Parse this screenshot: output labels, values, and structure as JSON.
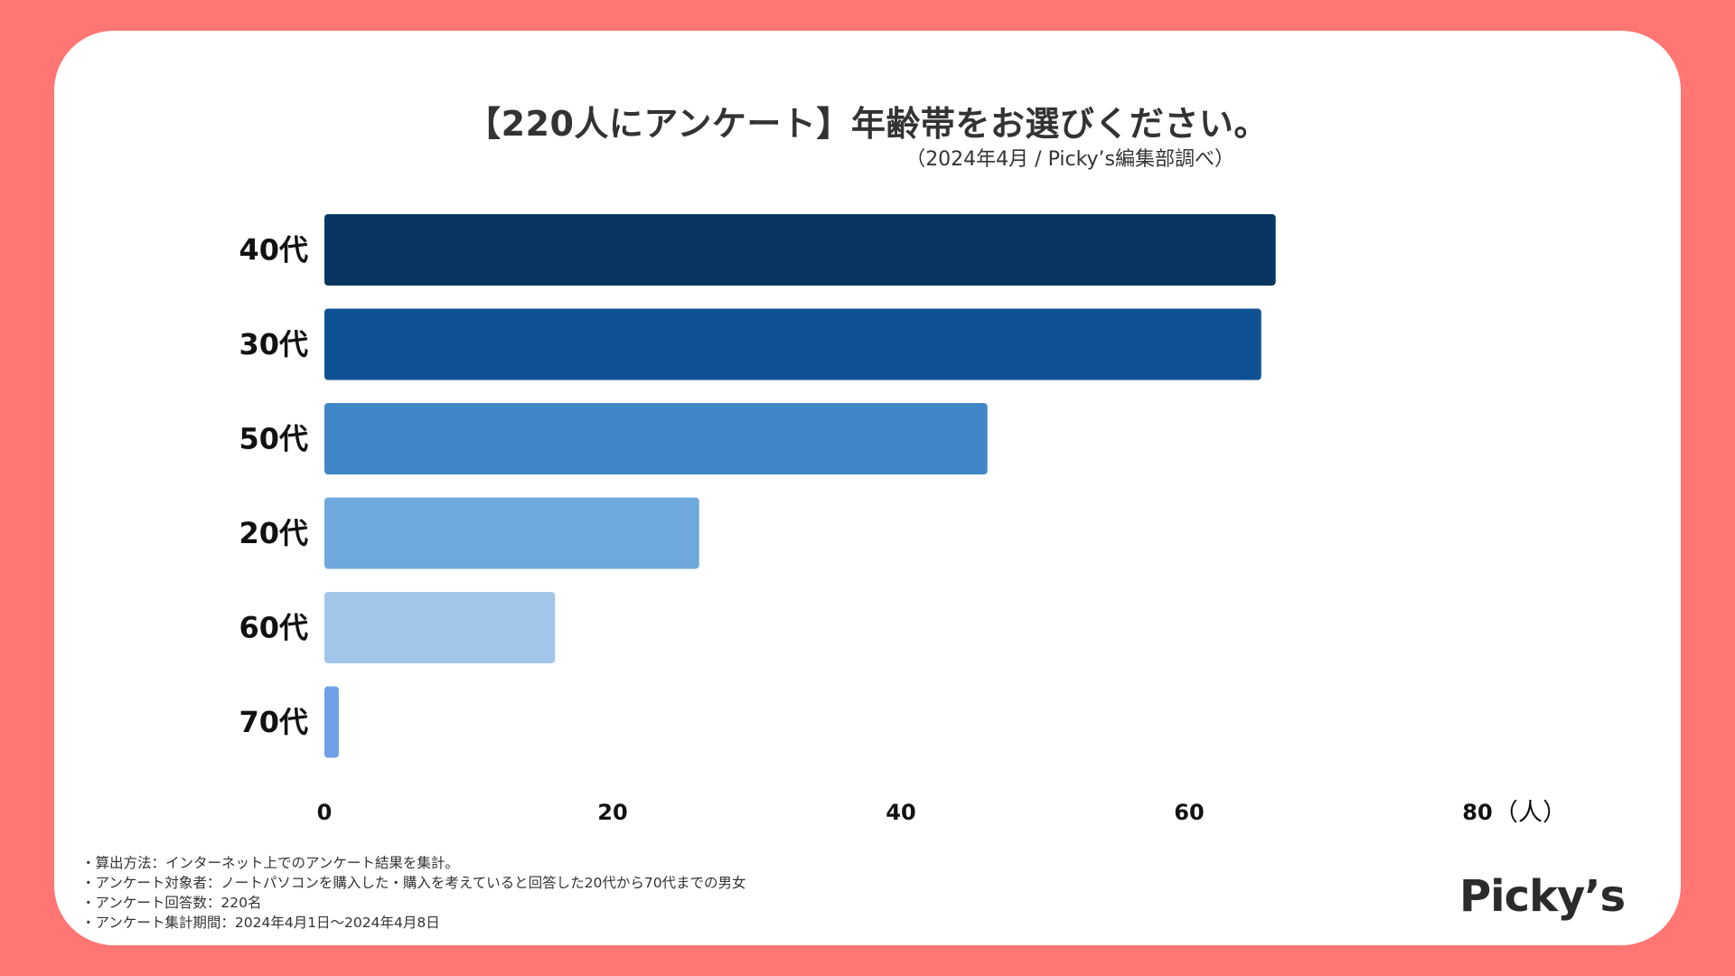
{
  "title": "【220人にアンケート】年齢帯をお選びください。",
  "subtitle": "（2024年4月 / Picky’s編集部調べ）",
  "chart_data": {
    "type": "bar",
    "orientation": "horizontal",
    "categories": [
      "40代",
      "30代",
      "50代",
      "20代",
      "60代",
      "70代"
    ],
    "values": [
      66,
      65,
      46,
      26,
      16,
      1
    ],
    "colors": [
      "#083660",
      "#0F5294",
      "#4186C7",
      "#6FA8DC",
      "#A1C6E9",
      "#6FA0E8"
    ],
    "xlim": [
      0,
      80
    ],
    "xticks": [
      0,
      20,
      40,
      60,
      80
    ],
    "xunit": "（人）",
    "grid": false,
    "legend": "none"
  },
  "notes": [
    "・算出方法：インターネット上でのアンケート結果を集計。",
    "・アンケート対象者：ノートパソコンを購入した・購入を考えていると回答した20代から70代までの男女",
    "・アンケート回答数：220名",
    "・アンケート集計期間：2024年4月1日〜2024年4月8日"
  ],
  "logo": "Picky’s",
  "colors": {
    "background": "#FF7672",
    "card": "#FFFFFF",
    "text": "#333333"
  }
}
